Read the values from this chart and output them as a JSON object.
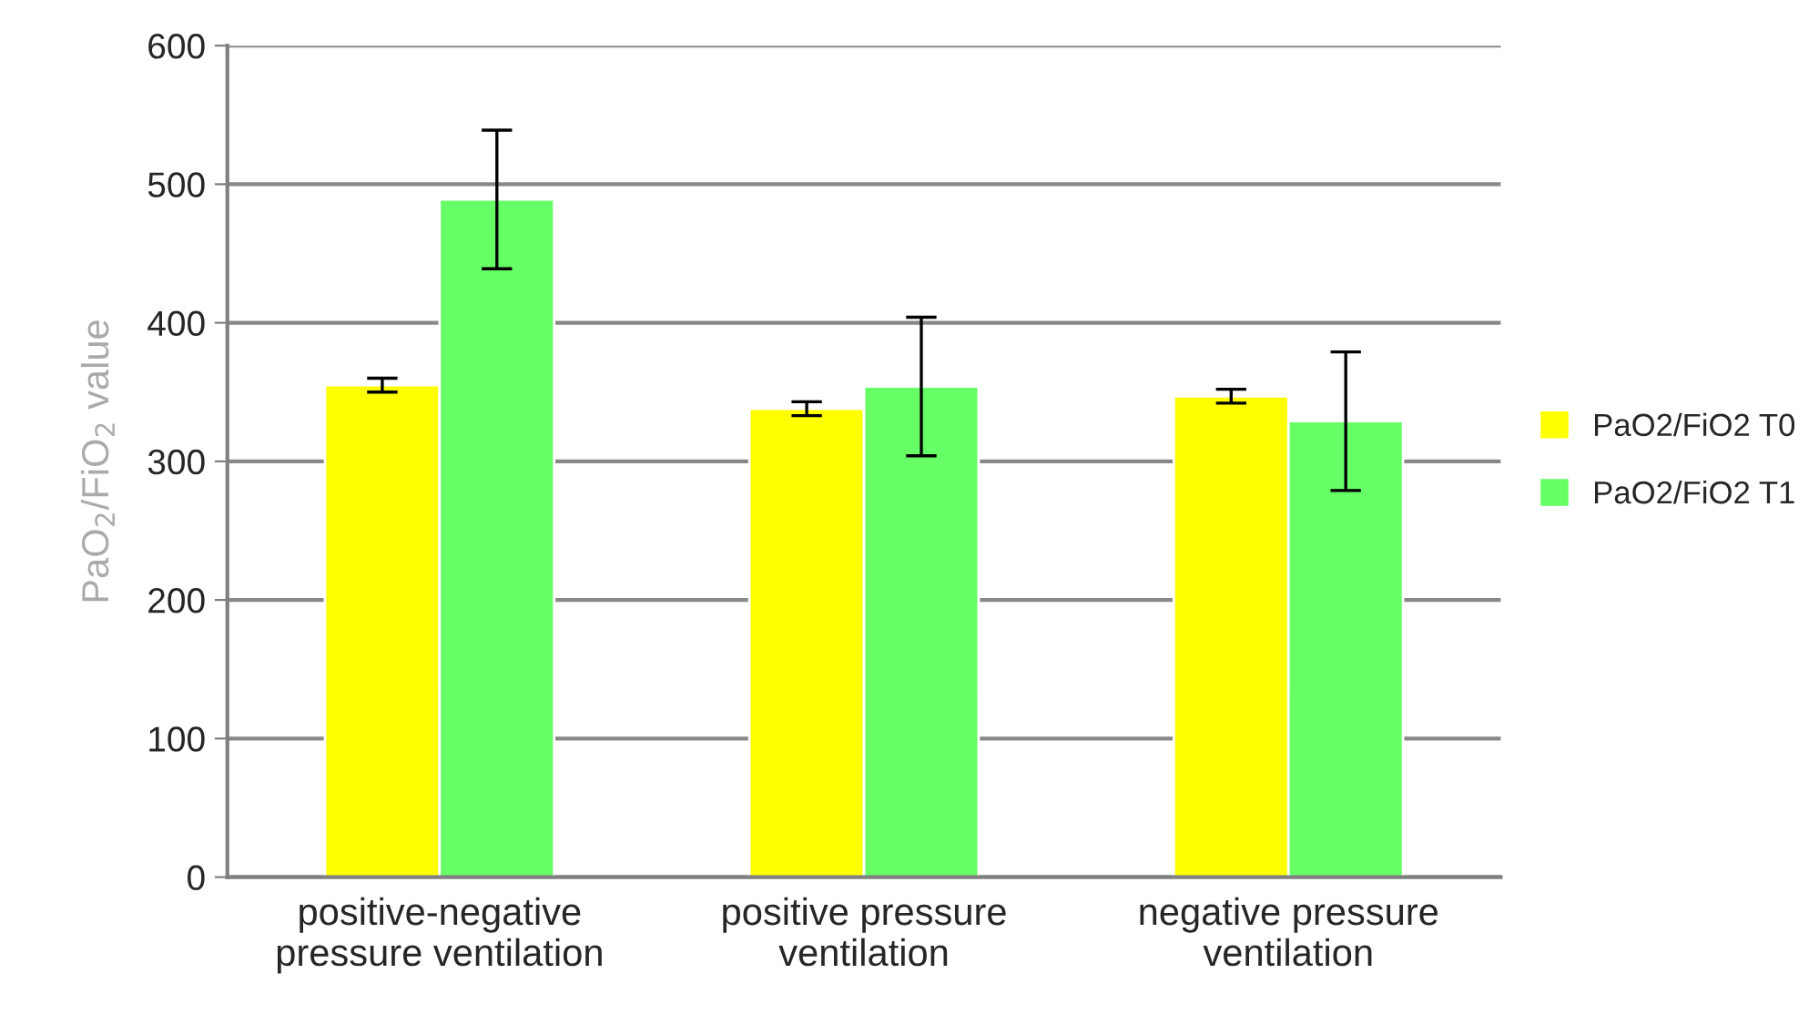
{
  "chart_data": {
    "type": "bar",
    "categories": [
      "positive-negative\npressure ventilation",
      "positive pressure\nventilation",
      "negative pressure\nventilation"
    ],
    "ylabel": "PaO$_{2}$/FiO$_{2}$ value",
    "series": [
      {
        "name": "PaO2/FiO2 T0",
        "color": "#ffff00",
        "values": [
          355,
          338,
          347
        ],
        "errors": [
          5,
          5,
          5
        ]
      },
      {
        "name": "PaO2/FiO2 T1",
        "color": "#66ff66",
        "values": [
          489,
          354,
          329
        ],
        "errors": [
          50,
          50,
          50
        ]
      }
    ],
    "ylim": [
      0,
      600
    ],
    "yticks": [
      0,
      100,
      200,
      300,
      400,
      500,
      600
    ],
    "grid": "y",
    "legend": "right"
  }
}
